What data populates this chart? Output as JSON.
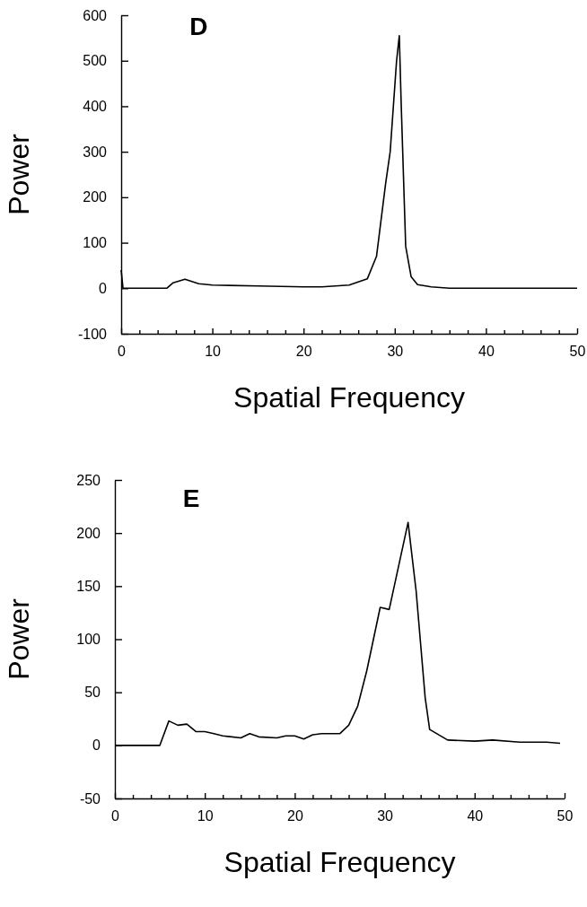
{
  "chart_data": [
    {
      "type": "line",
      "title": "D",
      "xlabel": "Spatial Frequency",
      "ylabel": "Power",
      "xlim": [
        0,
        50
      ],
      "ylim": [
        -100,
        600
      ],
      "xticks": [
        0,
        {
          "value": 2,
          "label": null
        },
        {
          "value": 4,
          "label": null
        },
        {
          "value": 6,
          "label": null
        },
        {
          "value": 8,
          "label": null
        },
        10,
        {
          "value": 12,
          "label": null
        },
        {
          "value": 14,
          "label": null
        },
        {
          "value": 16,
          "label": null
        },
        {
          "value": 18,
          "label": null
        },
        20,
        {
          "value": 22,
          "label": null
        },
        {
          "value": 24,
          "label": null
        },
        {
          "value": 26,
          "label": null
        },
        {
          "value": 28,
          "label": null
        },
        30,
        {
          "value": 32,
          "label": null
        },
        {
          "value": 34,
          "label": null
        },
        {
          "value": 36,
          "label": null
        },
        {
          "value": 38,
          "label": null
        },
        40,
        {
          "value": 42,
          "label": null
        },
        {
          "value": 44,
          "label": null
        },
        {
          "value": 46,
          "label": null
        },
        {
          "value": 48,
          "label": null
        },
        50
      ],
      "yticks": [
        -100,
        0,
        100,
        200,
        300,
        400,
        500,
        600
      ],
      "marker": "none",
      "line_style": "solid",
      "series": [
        {
          "color": "#000000",
          "x": [
            0,
            0.2,
            5,
            5.7,
            7,
            8.5,
            10,
            15,
            20,
            22,
            25,
            27,
            28,
            29,
            29.5,
            30.2,
            30.5,
            30.7,
            31.2,
            31.8,
            32.5,
            34,
            36,
            40,
            50
          ],
          "values": [
            40,
            0,
            0,
            12,
            20,
            10,
            7,
            5,
            3,
            3,
            7,
            21,
            70,
            230,
            300,
            500,
            555,
            410,
            92,
            25,
            8,
            3,
            0,
            0,
            0
          ]
        }
      ]
    },
    {
      "type": "line",
      "title": "E",
      "xlabel": "Spatial Frequency",
      "ylabel": "Power",
      "xlim": [
        0,
        50
      ],
      "ylim": [
        -50,
        250
      ],
      "xticks": [
        0,
        {
          "value": 2,
          "label": null
        },
        {
          "value": 4,
          "label": null
        },
        {
          "value": 6,
          "label": null
        },
        {
          "value": 8,
          "label": null
        },
        10,
        {
          "value": 12,
          "label": null
        },
        {
          "value": 14,
          "label": null
        },
        {
          "value": 16,
          "label": null
        },
        {
          "value": 18,
          "label": null
        },
        20,
        {
          "value": 22,
          "label": null
        },
        {
          "value": 24,
          "label": null
        },
        {
          "value": 26,
          "label": null
        },
        {
          "value": 28,
          "label": null
        },
        30,
        {
          "value": 32,
          "label": null
        },
        {
          "value": 34,
          "label": null
        },
        {
          "value": 36,
          "label": null
        },
        {
          "value": 38,
          "label": null
        },
        40,
        {
          "value": 42,
          "label": null
        },
        {
          "value": 44,
          "label": null
        },
        {
          "value": 46,
          "label": null
        },
        {
          "value": 48,
          "label": null
        },
        50
      ],
      "yticks": [
        -50,
        0,
        50,
        100,
        150,
        200,
        250
      ],
      "marker": "none",
      "line_style": "solid",
      "series": [
        {
          "color": "#000000",
          "x": [
            0,
            5,
            6,
            7,
            8,
            9,
            10,
            11,
            12,
            14,
            15,
            16,
            18,
            19,
            20,
            21,
            22,
            23,
            25,
            26,
            27,
            28,
            29.5,
            30.5,
            32.6,
            33.5,
            34.5,
            35,
            37,
            40,
            42,
            45,
            48,
            49.5
          ],
          "values": [
            0,
            0,
            23,
            19,
            20,
            13,
            13,
            11,
            9,
            7,
            11,
            8,
            7,
            9,
            9,
            6,
            10,
            11,
            11,
            19,
            37,
            70,
            130,
            128,
            210,
            145,
            45,
            15,
            5,
            4,
            5,
            3,
            3,
            2
          ]
        }
      ]
    }
  ]
}
